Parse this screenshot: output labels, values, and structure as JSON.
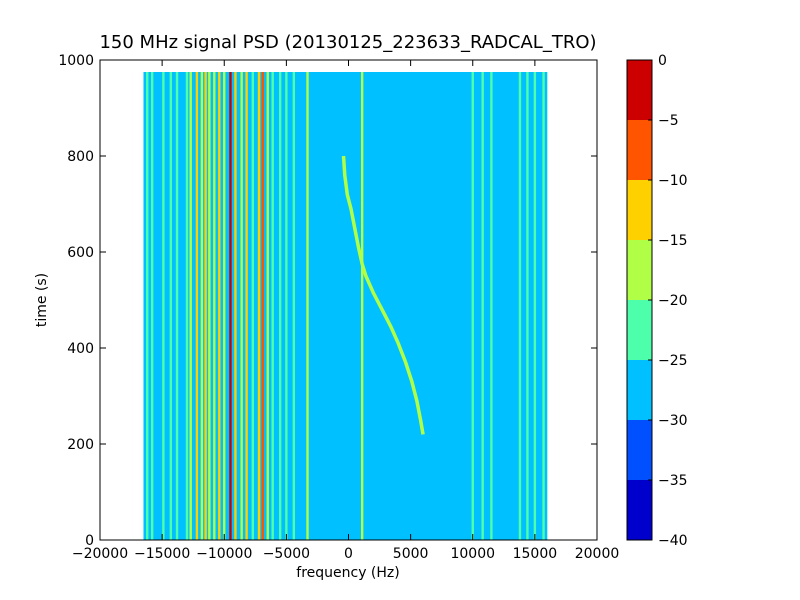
{
  "chart_data": {
    "type": "heatmap",
    "title": "150 MHz signal PSD (20130125_223633_RADCAL_TRO)",
    "xlabel": "frequency (Hz)",
    "ylabel": "time (s)",
    "xlim": [
      -20000,
      20000
    ],
    "ylim": [
      0,
      1000
    ],
    "x_ticks": [
      -20000,
      -15000,
      -10000,
      -5000,
      0,
      5000,
      10000,
      15000,
      20000
    ],
    "y_ticks": [
      0,
      200,
      400,
      600,
      800,
      1000
    ],
    "data_extent": {
      "x": [
        -16500,
        16000
      ],
      "y": [
        0,
        975
      ]
    },
    "background_level": -27.5,
    "colorbar": {
      "ticks": [
        0,
        -5,
        -10,
        -15,
        -20,
        -25,
        -30,
        -35,
        -40
      ],
      "range": [
        -40,
        0
      ],
      "levels": [
        {
          "range": [
            -40,
            -35
          ],
          "color": "#0000cd"
        },
        {
          "range": [
            -35,
            -30
          ],
          "color": "#0050ff"
        },
        {
          "range": [
            -30,
            -25
          ],
          "color": "#00c0ff"
        },
        {
          "range": [
            -25,
            -20
          ],
          "color": "#4dffaa"
        },
        {
          "range": [
            -20,
            -15
          ],
          "color": "#b0ff46"
        },
        {
          "range": [
            -15,
            -10
          ],
          "color": "#ffd000"
        },
        {
          "range": [
            -10,
            -5
          ],
          "color": "#ff5500"
        },
        {
          "range": [
            -5,
            0
          ],
          "color": "#cc0000"
        }
      ]
    },
    "series": [
      {
        "values": [
          [
            -16200,
            -22.5
          ],
          [
            -15800,
            -22.5
          ],
          [
            -14900,
            -22.5
          ],
          [
            -14300,
            -22.5
          ],
          [
            -13800,
            -22.5
          ],
          [
            -13000,
            -22.5
          ],
          [
            -12700,
            -17.5
          ],
          [
            -12200,
            -12.5
          ],
          [
            -11800,
            -17.5
          ],
          [
            -11500,
            -12.5
          ],
          [
            -11200,
            -17.5
          ],
          [
            -10800,
            -17.5
          ],
          [
            -10400,
            -12.5
          ],
          [
            -10000,
            -17.5
          ],
          [
            -9500,
            -2.5
          ],
          [
            -9100,
            -12.5
          ],
          [
            -8600,
            -17.5
          ],
          [
            -8200,
            -12.5
          ],
          [
            -7700,
            -22.5
          ],
          [
            -7200,
            -12.5
          ],
          [
            -6900,
            -7.5
          ],
          [
            -6500,
            -17.5
          ],
          [
            -6100,
            -22.5
          ],
          [
            -5500,
            -22.5
          ],
          [
            -5000,
            -22.5
          ],
          [
            -4400,
            -22.5
          ],
          [
            -3300,
            -17.5
          ],
          [
            1100,
            -17.5
          ],
          [
            10000,
            -22.5
          ],
          [
            10800,
            -22.5
          ],
          [
            11500,
            -22.5
          ],
          [
            13800,
            -22.5
          ],
          [
            14400,
            -22.5
          ],
          [
            15000,
            -22.5
          ],
          [
            15700,
            -22.5
          ]
        ]
      },
      {
        "values": [
          [
            -400,
            800
          ],
          [
            -300,
            760
          ],
          [
            -100,
            720
          ],
          [
            200,
            690
          ],
          [
            500,
            650
          ],
          [
            800,
            610
          ],
          [
            1100,
            575
          ],
          [
            1400,
            550
          ],
          [
            2000,
            515
          ],
          [
            2700,
            480
          ],
          [
            3400,
            445
          ],
          [
            4000,
            410
          ],
          [
            4600,
            370
          ],
          [
            5100,
            330
          ],
          [
            5500,
            290
          ],
          [
            5800,
            250
          ],
          [
            6000,
            220
          ]
        ]
      }
    ]
  }
}
